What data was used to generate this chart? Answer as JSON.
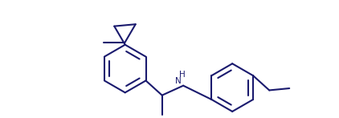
{
  "line_color": "#1a1a6e",
  "line_width": 1.5,
  "background_color": "#ffffff",
  "figsize": [
    4.22,
    1.47
  ],
  "dpi": 100,
  "nh_fontsize": 7.5,
  "nh_color": "#1a1a6e",
  "inner_ratio": 0.75
}
